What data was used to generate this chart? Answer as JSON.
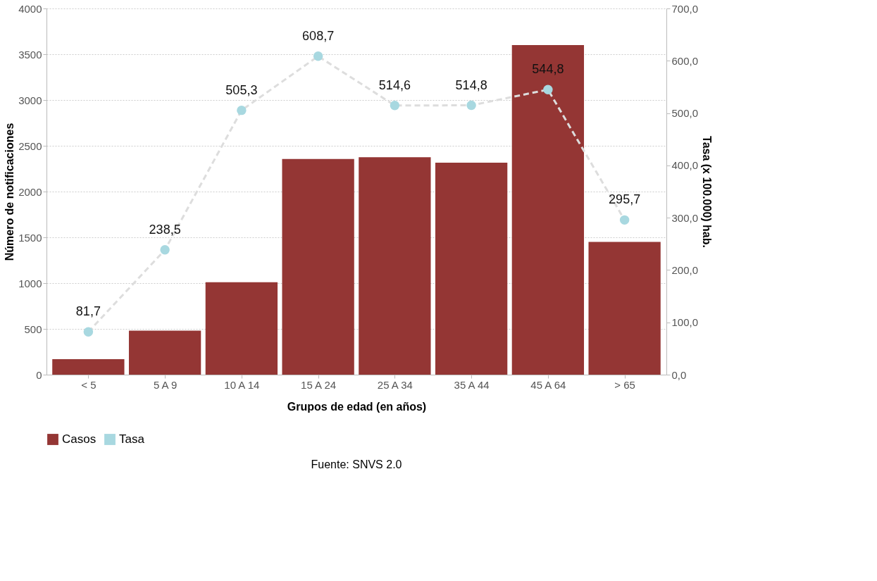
{
  "chart_data": {
    "type": "bar",
    "categories": [
      "<  5",
      "5 A 9",
      "10 A 14",
      "15 A 24",
      "25 A 34",
      "35 A 44",
      "45 A 64",
      "> 65"
    ],
    "xlabel": "Grupos de edad (en años)",
    "ylabel": "Número de notificaciones",
    "y2label": "Tasa (x 100.000) hab.",
    "series": [
      {
        "name": "Casos",
        "color": "#943634",
        "values": [
          170,
          480,
          1010,
          2355,
          2375,
          2315,
          3600,
          1450
        ]
      },
      {
        "name": "Tasa",
        "type": "line",
        "axis": "y2",
        "color": "#a8d8e0",
        "line_style": "dashed",
        "marker": "circle",
        "values": [
          81.7,
          238.5,
          505.3,
          608.7,
          514.6,
          514.8,
          544.8,
          295.7
        ],
        "value_labels": [
          "81,7",
          "238,5",
          "505,3",
          "608,7",
          "514,6",
          "514,8",
          "544,8",
          "295,7"
        ]
      }
    ],
    "ylim": [
      0,
      4000
    ],
    "yticks": [
      0,
      500,
      1000,
      1500,
      2000,
      2500,
      3000,
      3500,
      4000
    ],
    "y2lim": [
      0,
      700
    ],
    "y2ticks": [
      {
        "value": 0,
        "label": "0,0"
      },
      {
        "value": 100,
        "label": "100,0"
      },
      {
        "value": 200,
        "label": "200,0"
      },
      {
        "value": 300,
        "label": "300,0"
      },
      {
        "value": 400,
        "label": "400,0"
      },
      {
        "value": 500,
        "label": "500,0"
      },
      {
        "value": 600,
        "label": "600,0"
      },
      {
        "value": 700,
        "label": "700,0"
      }
    ],
    "grid": "y",
    "legend": "bottom",
    "annotations": [
      "Fuente: SNVS 2.0"
    ]
  }
}
